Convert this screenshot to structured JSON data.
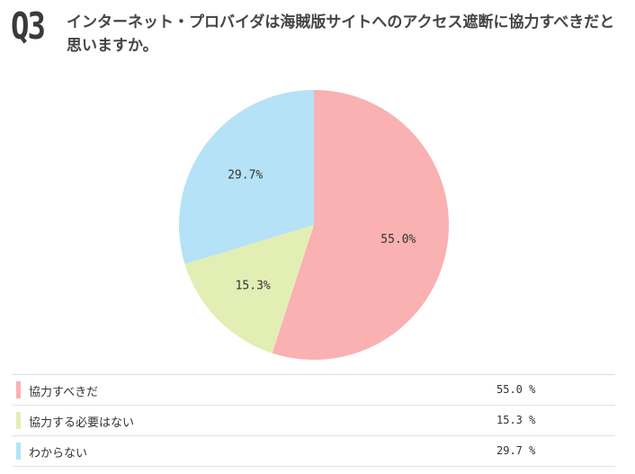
{
  "question": {
    "number": "Q3",
    "title": "インターネット・プロバイダは海賊版サイトへのアクセス遮断に協力すべきだと思いますか。"
  },
  "chart_data": {
    "type": "pie",
    "title": "インターネット・プロバイダは海賊版サイトへのアクセス遮断に協力すべきだと思いますか。",
    "categories": [
      "協力すべきだ",
      "協力する必要はない",
      "わからない"
    ],
    "values": [
      55.0,
      15.3,
      29.7
    ],
    "data_labels": [
      "55.0%",
      "15.3%",
      "29.7%"
    ],
    "colors": [
      "#f9b1b1",
      "#e3eeb4",
      "#b5e2f6"
    ],
    "start": "12 o'clock",
    "direction": "clockwise",
    "legend_placement": "bottom"
  },
  "legend": [
    {
      "label": "協力すべきだ",
      "value": "55.0 %",
      "color": "#f9b1b1"
    },
    {
      "label": "協力する必要はない",
      "value": "15.3 %",
      "color": "#e3eeb4"
    },
    {
      "label": "わからない",
      "value": "29.7 %",
      "color": "#b5e2f6"
    }
  ]
}
